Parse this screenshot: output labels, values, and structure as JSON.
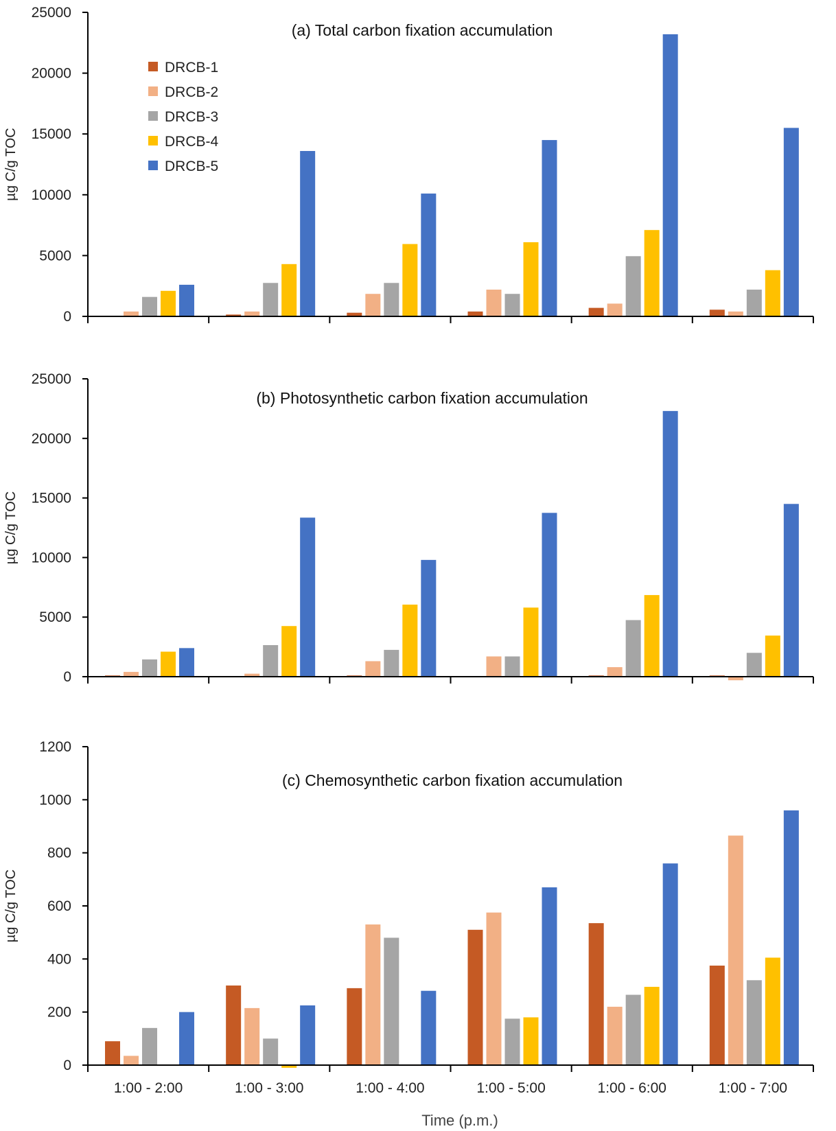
{
  "series_names": [
    "DRCB-1",
    "DRCB-2",
    "DRCB-3",
    "DRCB-4",
    "DRCB-5"
  ],
  "colors": [
    "#c55a24",
    "#f2b085",
    "#a5a5a5",
    "#ffc000",
    "#4472c4"
  ],
  "xlabel": "Time (p.m.)",
  "chart_data": [
    {
      "type": "bar",
      "title": "(a) Total carbon fixation accumulation",
      "ylabel": "µg C/g TOC",
      "ylim": [
        0,
        25000
      ],
      "yticks": [
        0,
        5000,
        10000,
        15000,
        20000,
        25000
      ],
      "categories": [
        "1:00 - 2:00",
        "1:00 - 3:00",
        "1:00 - 4:00",
        "1:00 - 5:00",
        "1:00 - 6:00",
        "1:00 - 7:00"
      ],
      "legend": "top-left",
      "series": [
        {
          "name": "DRCB-1",
          "values": [
            0,
            150,
            300,
            400,
            700,
            550
          ]
        },
        {
          "name": "DRCB-2",
          "values": [
            400,
            400,
            1850,
            2200,
            1050,
            400
          ]
        },
        {
          "name": "DRCB-3",
          "values": [
            1600,
            2750,
            2750,
            1850,
            4950,
            2200
          ]
        },
        {
          "name": "DRCB-4",
          "values": [
            2100,
            4300,
            5950,
            6100,
            7100,
            3800
          ]
        },
        {
          "name": "DRCB-5",
          "values": [
            2600,
            13600,
            10100,
            14500,
            23200,
            15500
          ]
        }
      ]
    },
    {
      "type": "bar",
      "title": "(b) Photosynthetic carbon fixation accumulation",
      "ylabel": "µg C/g TOC",
      "ylim": [
        0,
        25000
      ],
      "yticks": [
        0,
        5000,
        10000,
        15000,
        20000,
        25000
      ],
      "categories": [
        "1:00 - 2:00",
        "1:00 - 3:00",
        "1:00 - 4:00",
        "1:00 - 5:00",
        "1:00 - 6:00",
        "1:00 - 7:00"
      ],
      "series": [
        {
          "name": "DRCB-1",
          "values": [
            100,
            0,
            100,
            0,
            100,
            100
          ]
        },
        {
          "name": "DRCB-2",
          "values": [
            400,
            250,
            1300,
            1700,
            800,
            -300
          ]
        },
        {
          "name": "DRCB-3",
          "values": [
            1450,
            2650,
            2250,
            1700,
            4750,
            2000
          ]
        },
        {
          "name": "DRCB-4",
          "values": [
            2100,
            4250,
            6050,
            5800,
            6850,
            3450
          ]
        },
        {
          "name": "DRCB-5",
          "values": [
            2400,
            13350,
            9800,
            13750,
            22300,
            14500
          ]
        }
      ]
    },
    {
      "type": "bar",
      "title": "(c) Chemosynthetic carbon fixation accumulation",
      "ylabel": "µg C/g TOC",
      "xlabel": "Time (p.m.)",
      "ylim": [
        0,
        1200
      ],
      "yticks": [
        0,
        200,
        400,
        600,
        800,
        1000,
        1200
      ],
      "categories": [
        "1:00 - 2:00",
        "1:00 - 3:00",
        "1:00 - 4:00",
        "1:00 - 5:00",
        "1:00 - 6:00",
        "1:00 - 7:00"
      ],
      "series": [
        {
          "name": "DRCB-1",
          "values": [
            90,
            300,
            290,
            510,
            535,
            375
          ]
        },
        {
          "name": "DRCB-2",
          "values": [
            35,
            215,
            530,
            575,
            220,
            865
          ]
        },
        {
          "name": "DRCB-3",
          "values": [
            140,
            100,
            480,
            175,
            265,
            320
          ]
        },
        {
          "name": "DRCB-4",
          "values": [
            0,
            -10,
            0,
            180,
            295,
            405
          ]
        },
        {
          "name": "DRCB-5",
          "values": [
            200,
            225,
            280,
            670,
            760,
            960
          ]
        }
      ]
    }
  ]
}
